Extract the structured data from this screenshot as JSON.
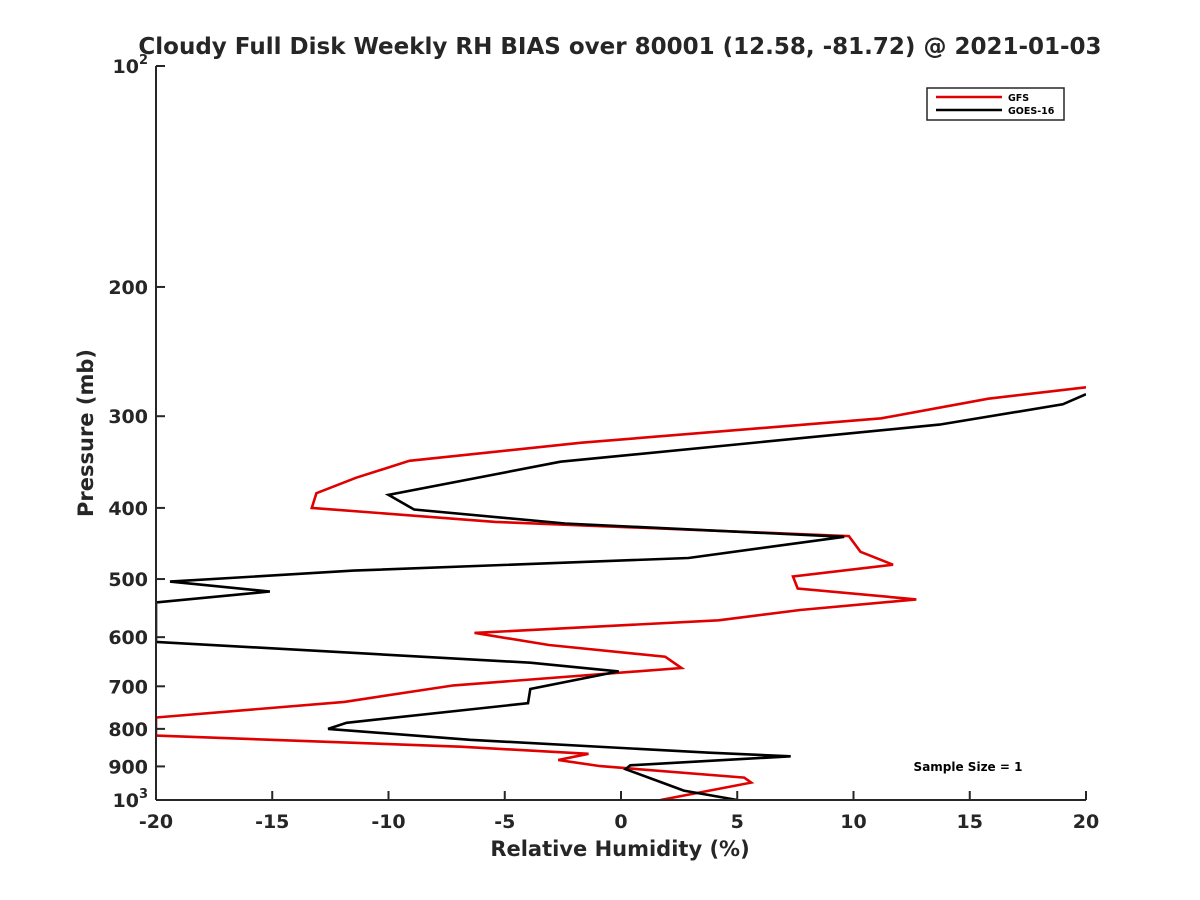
{
  "chart_data": {
    "type": "line",
    "title": "Cloudy Full Disk Weekly RH BIAS over 80001 (12.58, -81.72) @ 2021-01-03",
    "xlabel": "Relative Humidity (%)",
    "ylabel": "Pressure (mb)",
    "xlim": [
      -20,
      20
    ],
    "ylim": [
      100,
      1000
    ],
    "y_scale": "log",
    "y_reversed": true,
    "grid": false,
    "legend_position": "top-right",
    "x_ticks": [
      -20,
      -15,
      -10,
      -5,
      0,
      5,
      10,
      15,
      20
    ],
    "y_ticks": [
      {
        "value": 100,
        "base": "10",
        "exp": "2"
      },
      {
        "value": 200,
        "label": "200"
      },
      {
        "value": 300,
        "label": "300"
      },
      {
        "value": 400,
        "label": "400"
      },
      {
        "value": 500,
        "label": "500"
      },
      {
        "value": 600,
        "label": "600"
      },
      {
        "value": 700,
        "label": "700"
      },
      {
        "value": 800,
        "label": "800"
      },
      {
        "value": 900,
        "label": "900"
      },
      {
        "value": 1000,
        "base": "10",
        "exp": "3"
      }
    ],
    "annotation": "Sample Size = 1",
    "series": [
      {
        "name": "GFS",
        "color": "#e00000",
        "points": [
          [
            20,
            274
          ],
          [
            15.8,
            284
          ],
          [
            11.2,
            302
          ],
          [
            -1.7,
            326
          ],
          [
            -9.1,
            345
          ],
          [
            -11.4,
            364
          ],
          [
            -13.1,
            382
          ],
          [
            -13.3,
            400
          ],
          [
            -5.4,
            418
          ],
          [
            9.8,
            437
          ],
          [
            10.3,
            459
          ],
          [
            11.7,
            478
          ],
          [
            7.4,
            496
          ],
          [
            7.6,
            515
          ],
          [
            12.7,
            533
          ],
          [
            7.7,
            551
          ],
          [
            4.2,
            569
          ],
          [
            -6.3,
            592
          ],
          [
            -3.1,
            615
          ],
          [
            1.9,
            638
          ],
          [
            2.6,
            661
          ],
          [
            -7.2,
            698
          ],
          [
            -11.9,
            735
          ],
          [
            -20,
            772
          ],
          [
            -20,
            817
          ],
          [
            -6.9,
            846
          ],
          [
            -1.4,
            865
          ],
          [
            -2.7,
            882
          ],
          [
            -0.9,
            899
          ],
          [
            5.3,
            932
          ],
          [
            5.6,
            947
          ],
          [
            1.7,
            1000
          ]
        ]
      },
      {
        "name": "GOES-16",
        "color": "#000000",
        "points": [
          [
            20,
            280
          ],
          [
            19,
            289
          ],
          [
            13.7,
            308
          ],
          [
            -2.6,
            346
          ],
          [
            -10,
            384
          ],
          [
            -8.9,
            402
          ],
          [
            -2.4,
            420
          ],
          [
            9.6,
            438
          ],
          [
            2.9,
            468
          ],
          [
            -11.5,
            487
          ],
          [
            -19.4,
            504
          ],
          [
            -15.1,
            520
          ],
          [
            -20,
            538
          ],
          [
            -20,
            609
          ],
          [
            -3.9,
            650
          ],
          [
            -0.1,
            668
          ],
          [
            -3.9,
            706
          ],
          [
            -4,
            738
          ],
          [
            -11.8,
            785
          ],
          [
            -12.6,
            800
          ],
          [
            -6.5,
            828
          ],
          [
            3.8,
            862
          ],
          [
            7.3,
            872
          ],
          [
            0.4,
            897
          ],
          [
            0.2,
            908
          ],
          [
            1.7,
            945
          ],
          [
            2.7,
            971
          ],
          [
            5,
            1000
          ]
        ]
      }
    ]
  }
}
